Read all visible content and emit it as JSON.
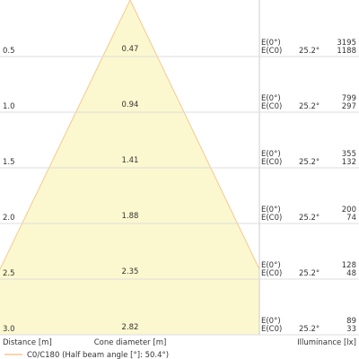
{
  "rows": [
    {
      "distance": "0.5",
      "diameter": "0.47",
      "e0": "3195",
      "ec0": "1188",
      "angle": "25.2°"
    },
    {
      "distance": "1.0",
      "diameter": "0.94",
      "e0": "799",
      "ec0": "297",
      "angle": "25.2°"
    },
    {
      "distance": "1.5",
      "diameter": "1.41",
      "e0": "355",
      "ec0": "132",
      "angle": "25.2°"
    },
    {
      "distance": "2.0",
      "diameter": "1.88",
      "e0": "200",
      "ec0": "74",
      "angle": "25.2°"
    },
    {
      "distance": "2.5",
      "diameter": "2.35",
      "e0": "128",
      "ec0": "48",
      "angle": "25.2°"
    },
    {
      "distance": "3.0",
      "diameter": "2.82",
      "e0": "89",
      "ec0": "33",
      "angle": "25.2°"
    }
  ],
  "labels": {
    "e0": "E(0°)",
    "ec0": "E(C0)"
  },
  "footer": {
    "distance": "Distance [m]",
    "diameter": "Cone diameter [m]",
    "illuminance": "Illuminance [lx]"
  },
  "legend": "C0/C180 (Half beam angle [°]: 50.4°)"
}
